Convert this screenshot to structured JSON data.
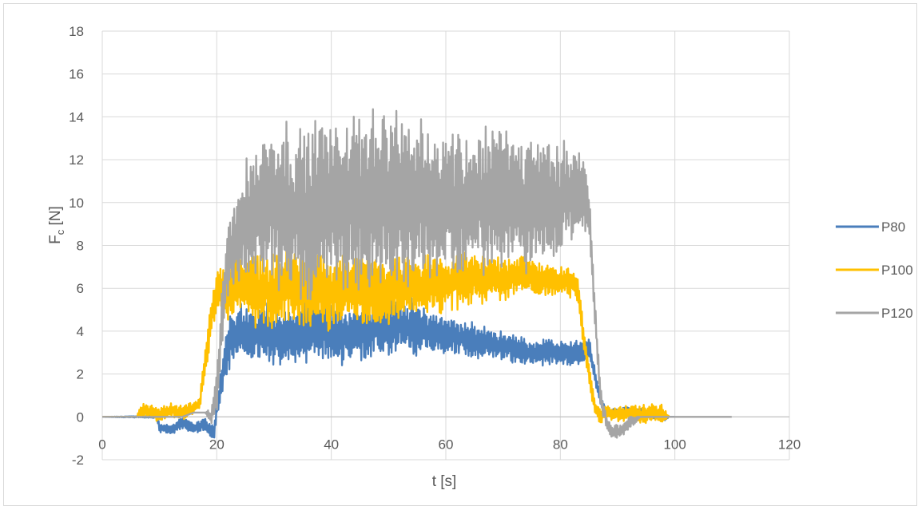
{
  "chart_data": {
    "type": "line",
    "title": "",
    "xlabel": "t [s]",
    "ylabel_main": "F",
    "ylabel_sub": "c",
    "ylabel_unit": " [N]",
    "xlim": [
      0,
      120
    ],
    "ylim": [
      -2,
      18
    ],
    "x_ticks": [
      0,
      20,
      40,
      60,
      80,
      100,
      120
    ],
    "y_ticks": [
      -2,
      0,
      2,
      4,
      6,
      8,
      10,
      12,
      14,
      16,
      18
    ],
    "grid": "major-both",
    "legend_position": "right",
    "series": [
      {
        "name": "P80",
        "color": "#4a7ebb",
        "points": [
          [
            0,
            0
          ],
          [
            9.5,
            0
          ],
          [
            10,
            -0.5
          ],
          [
            12,
            -0.6
          ],
          [
            14,
            -0.3
          ],
          [
            16,
            -0.5
          ],
          [
            18,
            -0.4
          ],
          [
            19.5,
            -0.8
          ],
          [
            20,
            0.3
          ],
          [
            21,
            2.0
          ],
          [
            22,
            3.5
          ],
          [
            24,
            4.0
          ],
          [
            26,
            3.6
          ],
          [
            28,
            4.2
          ],
          [
            30,
            3.8
          ],
          [
            32,
            3.6
          ],
          [
            34,
            3.8
          ],
          [
            36,
            4.0
          ],
          [
            38,
            4.2
          ],
          [
            40,
            4.0
          ],
          [
            42,
            3.8
          ],
          [
            44,
            3.9
          ],
          [
            46,
            4.0
          ],
          [
            48,
            4.2
          ],
          [
            50,
            4.1
          ],
          [
            52,
            4.4
          ],
          [
            54,
            4.2
          ],
          [
            56,
            4.0
          ],
          [
            58,
            3.9
          ],
          [
            60,
            3.8
          ],
          [
            62,
            3.7
          ],
          [
            64,
            3.6
          ],
          [
            66,
            3.5
          ],
          [
            68,
            3.4
          ],
          [
            70,
            3.3
          ],
          [
            72,
            3.2
          ],
          [
            74,
            3.0
          ],
          [
            76,
            3.0
          ],
          [
            78,
            3.0
          ],
          [
            80,
            3.0
          ],
          [
            82,
            3.0
          ],
          [
            84,
            3.0
          ],
          [
            85,
            3.2
          ],
          [
            86,
            2.0
          ],
          [
            87,
            0.8
          ],
          [
            88,
            0.2
          ],
          [
            90,
            0.2
          ],
          [
            92,
            0.3
          ],
          [
            94,
            0.2
          ],
          [
            96,
            0.1
          ],
          [
            98,
            0
          ],
          [
            100,
            0
          ]
        ],
        "noise": [
          [
            0,
            0
          ],
          [
            9.5,
            0.05
          ],
          [
            10,
            0.2
          ],
          [
            20,
            0.3
          ],
          [
            22,
            1.2
          ],
          [
            40,
            1.2
          ],
          [
            55,
            1.1
          ],
          [
            60,
            0.8
          ],
          [
            70,
            0.6
          ],
          [
            80,
            0.5
          ],
          [
            85,
            0.5
          ],
          [
            86,
            0.3
          ],
          [
            88,
            0.2
          ],
          [
            98,
            0.2
          ],
          [
            99,
            0
          ],
          [
            100,
            0
          ]
        ]
      },
      {
        "name": "P100",
        "color": "#ffc000",
        "points": [
          [
            0,
            0
          ],
          [
            6,
            0
          ],
          [
            6.5,
            0.2
          ],
          [
            8,
            0.3
          ],
          [
            10,
            0.1
          ],
          [
            12,
            0.3
          ],
          [
            14,
            0.2
          ],
          [
            16,
            0.4
          ],
          [
            17,
            0.6
          ],
          [
            18,
            2.5
          ],
          [
            19,
            4.5
          ],
          [
            20,
            6.0
          ],
          [
            22,
            5.8
          ],
          [
            24,
            6.2
          ],
          [
            26,
            5.9
          ],
          [
            28,
            6.0
          ],
          [
            30,
            5.8
          ],
          [
            32,
            6.0
          ],
          [
            34,
            6.1
          ],
          [
            36,
            5.9
          ],
          [
            38,
            6.0
          ],
          [
            40,
            5.8
          ],
          [
            42,
            6.0
          ],
          [
            44,
            6.1
          ],
          [
            46,
            5.9
          ],
          [
            48,
            6.0
          ],
          [
            50,
            5.9
          ],
          [
            52,
            6.0
          ],
          [
            54,
            6.2
          ],
          [
            56,
            6.1
          ],
          [
            58,
            6.2
          ],
          [
            60,
            6.2
          ],
          [
            62,
            6.3
          ],
          [
            64,
            6.5
          ],
          [
            66,
            6.4
          ],
          [
            68,
            6.5
          ],
          [
            70,
            6.5
          ],
          [
            72,
            6.6
          ],
          [
            74,
            6.6
          ],
          [
            76,
            6.5
          ],
          [
            78,
            6.4
          ],
          [
            80,
            6.3
          ],
          [
            82,
            6.2
          ],
          [
            83,
            6.0
          ],
          [
            84,
            4.0
          ],
          [
            85,
            2.0
          ],
          [
            86,
            0.5
          ],
          [
            87,
            0
          ],
          [
            88,
            0.2
          ],
          [
            90,
            0.1
          ],
          [
            92,
            0.2
          ],
          [
            94,
            0.1
          ],
          [
            96,
            0.2
          ],
          [
            98,
            0.1
          ],
          [
            99,
            0
          ]
        ],
        "noise": [
          [
            0,
            0
          ],
          [
            6,
            0
          ],
          [
            6.5,
            0.3
          ],
          [
            17,
            0.3
          ],
          [
            18,
            0.6
          ],
          [
            20,
            1.0
          ],
          [
            26,
            1.6
          ],
          [
            50,
            1.4
          ],
          [
            60,
            1.1
          ],
          [
            70,
            0.9
          ],
          [
            80,
            0.6
          ],
          [
            84,
            0.6
          ],
          [
            86,
            0.3
          ],
          [
            98,
            0.4
          ],
          [
            99,
            0
          ]
        ]
      },
      {
        "name": "P120",
        "color": "#a5a5a5",
        "points": [
          [
            0,
            0
          ],
          [
            10,
            0
          ],
          [
            14,
            0
          ],
          [
            16,
            0.2
          ],
          [
            18,
            0.2
          ],
          [
            19,
            0
          ],
          [
            20,
            1.0
          ],
          [
            21,
            5.0
          ],
          [
            22,
            7.5
          ],
          [
            24,
            8.5
          ],
          [
            26,
            9.5
          ],
          [
            28,
            9.8
          ],
          [
            30,
            10.0
          ],
          [
            32,
            9.8
          ],
          [
            34,
            9.5
          ],
          [
            36,
            9.6
          ],
          [
            38,
            10.0
          ],
          [
            40,
            10.0
          ],
          [
            42,
            9.8
          ],
          [
            44,
            10.0
          ],
          [
            46,
            10.2
          ],
          [
            48,
            10.5
          ],
          [
            50,
            10.3
          ],
          [
            52,
            10.0
          ],
          [
            54,
            9.8
          ],
          [
            56,
            10.0
          ],
          [
            58,
            10.0
          ],
          [
            60,
            10.2
          ],
          [
            62,
            10.0
          ],
          [
            64,
            9.8
          ],
          [
            66,
            10.0
          ],
          [
            68,
            10.1
          ],
          [
            70,
            10.3
          ],
          [
            72,
            10.2
          ],
          [
            74,
            10.0
          ],
          [
            76,
            10.2
          ],
          [
            78,
            10.3
          ],
          [
            80,
            10.2
          ],
          [
            82,
            10.4
          ],
          [
            84,
            10.2
          ],
          [
            85,
            9.5
          ],
          [
            86,
            5.0
          ],
          [
            87,
            1.0
          ],
          [
            88,
            -0.2
          ],
          [
            89,
            -0.7
          ],
          [
            91,
            -0.6
          ],
          [
            92,
            -0.3
          ],
          [
            94,
            0
          ],
          [
            100,
            0
          ],
          [
            110,
            0
          ]
        ],
        "noise": [
          [
            0,
            0
          ],
          [
            18,
            0
          ],
          [
            19,
            0.4
          ],
          [
            21,
            1.5
          ],
          [
            24,
            2.2
          ],
          [
            30,
            3.5
          ],
          [
            48,
            3.6
          ],
          [
            60,
            3.0
          ],
          [
            70,
            3.0
          ],
          [
            80,
            2.3
          ],
          [
            84,
            1.8
          ],
          [
            86,
            0.6
          ],
          [
            88,
            0.3
          ],
          [
            92,
            0.3
          ],
          [
            94,
            0
          ],
          [
            110,
            0
          ]
        ]
      }
    ]
  }
}
